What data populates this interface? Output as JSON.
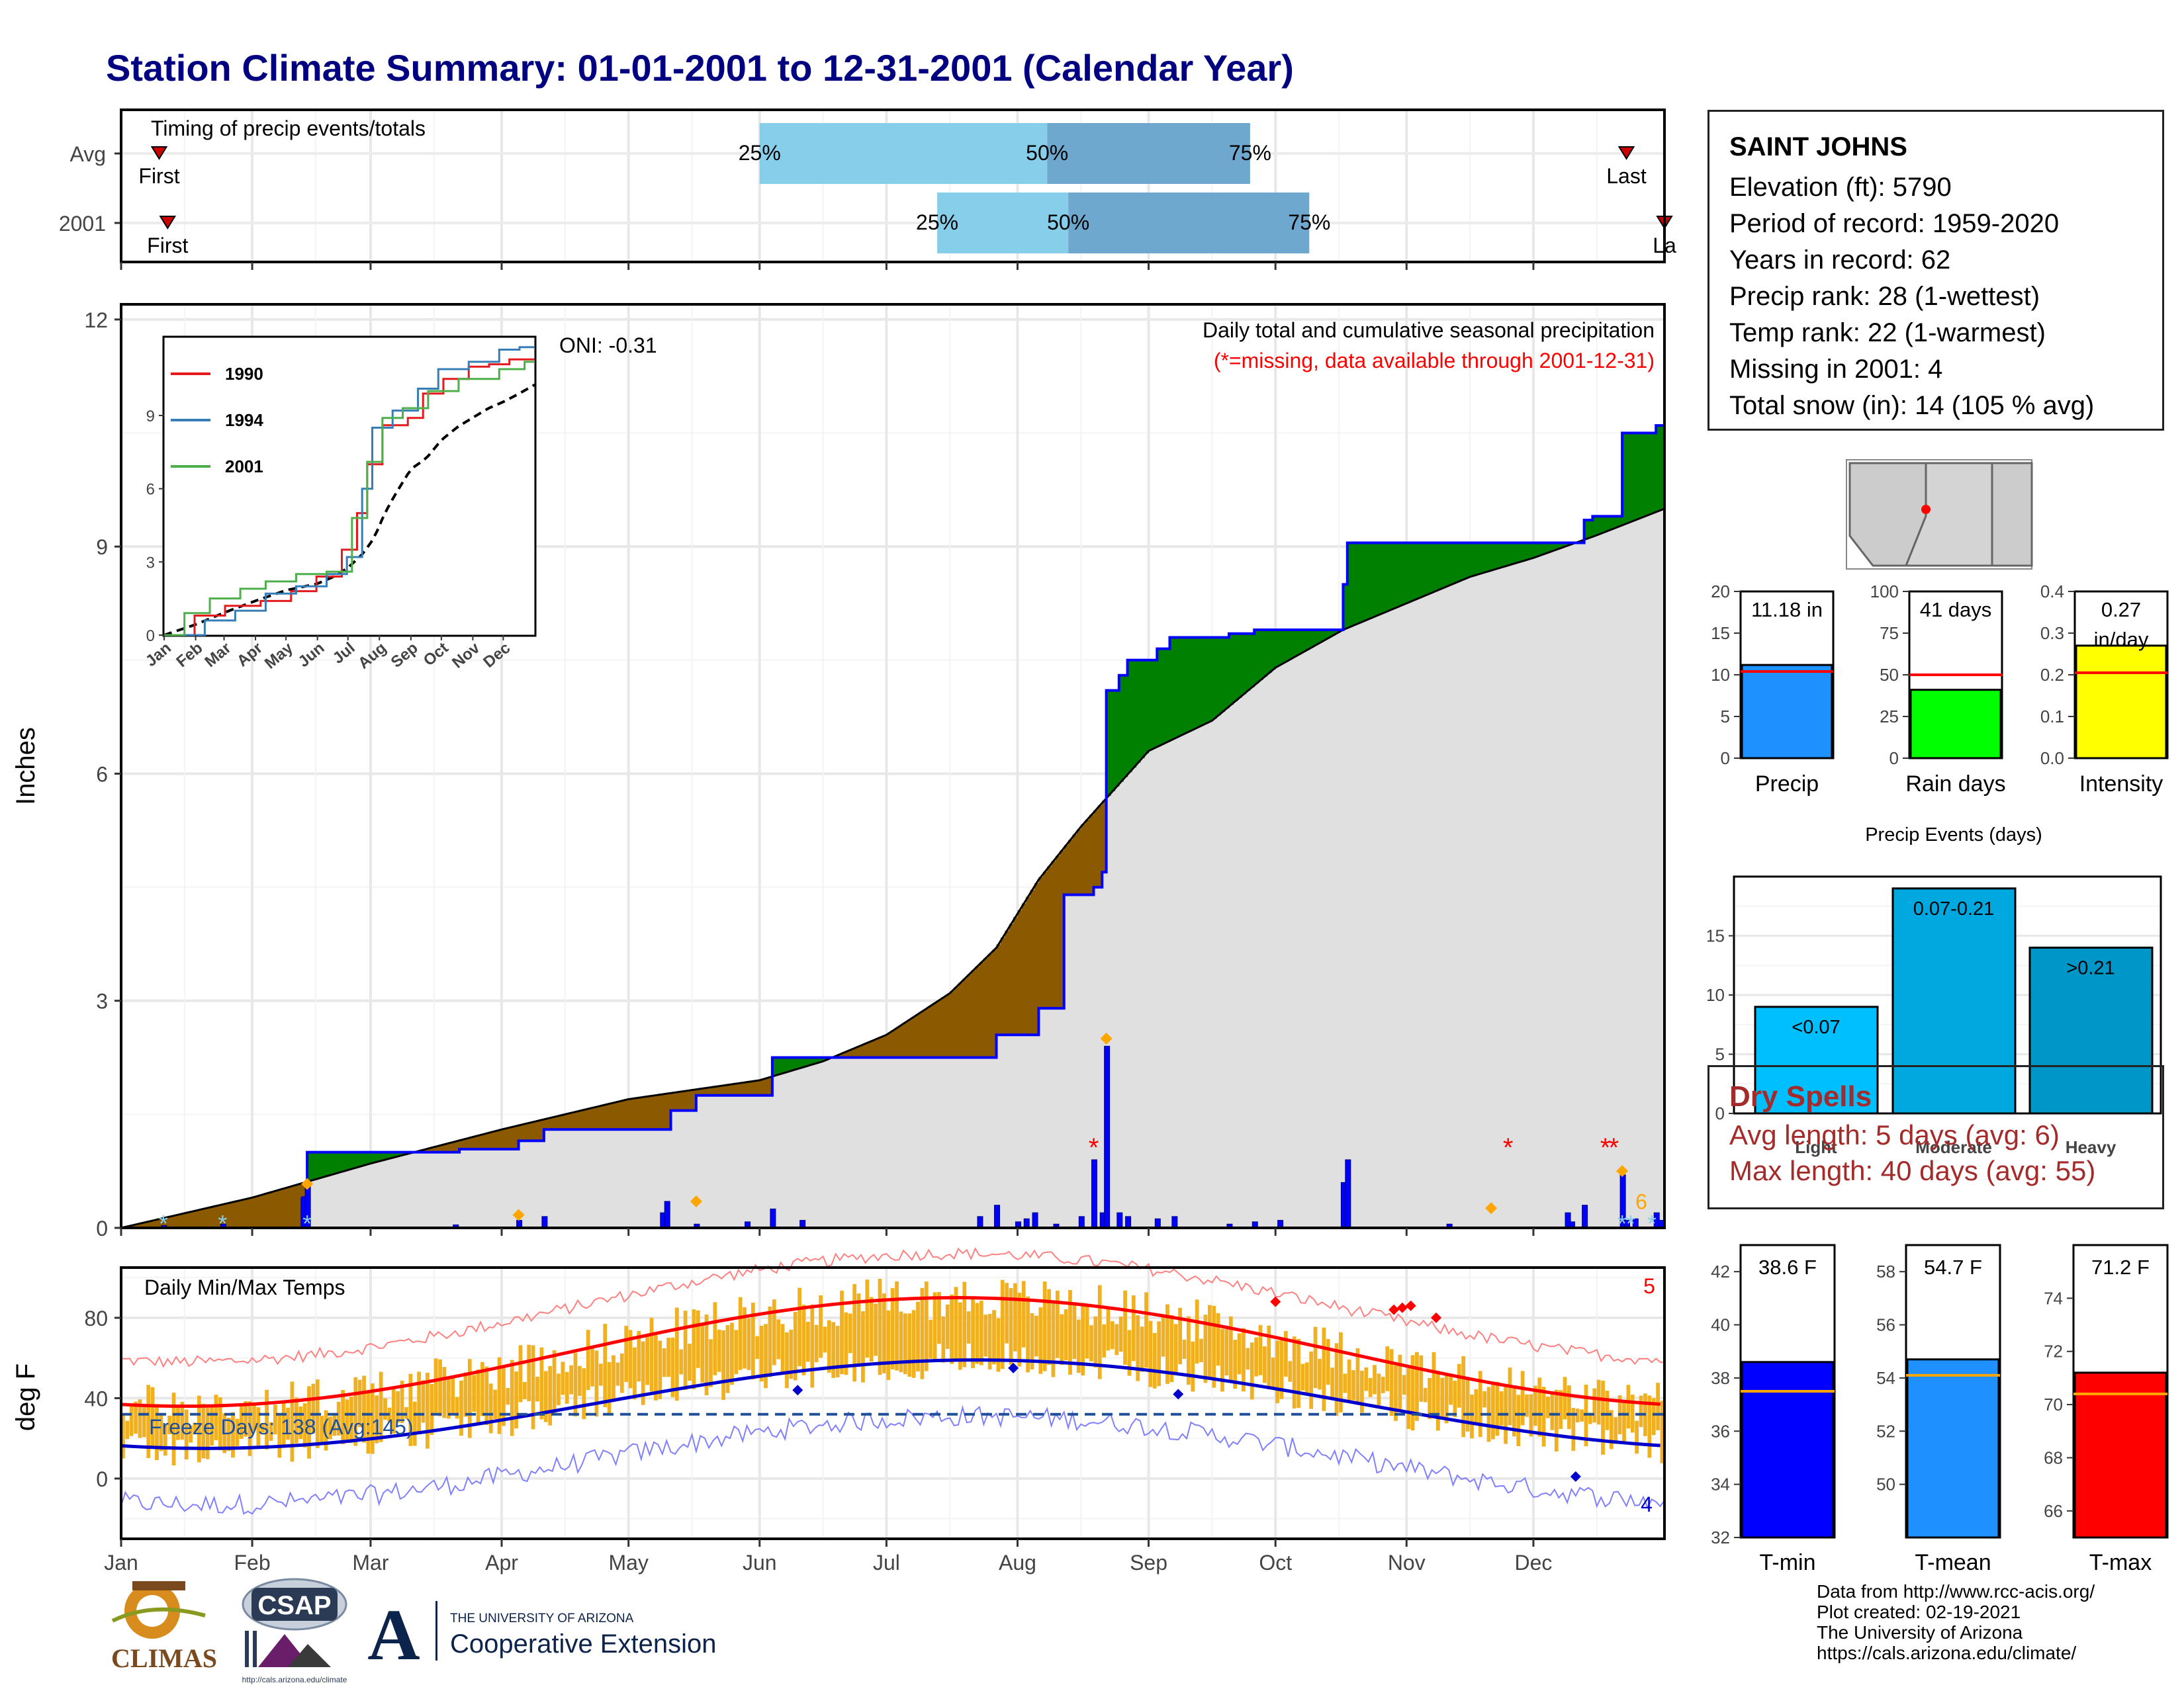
{
  "title": "Station Climate Summary: 01-01-2001 to 12-31-2001 (Calendar Year)",
  "timing": {
    "label": "Timing of precip events/totals",
    "rows": [
      {
        "name": "Avg",
        "first_label": "First",
        "last_label": "Last",
        "q25": "25%",
        "q50": "50%",
        "q75": "75%",
        "first_doy": 9,
        "last_doy": 356,
        "p25_doy": 151,
        "p50_doy": 219,
        "p75_doy": 267
      },
      {
        "name": "2001",
        "first_label": "First",
        "last_label": "La",
        "q25": "25%",
        "q50": "50%",
        "q75": "75%",
        "first_doy": 11,
        "last_doy": 365,
        "p25_doy": 193,
        "p50_doy": 224,
        "p75_doy": 281
      }
    ],
    "colors": {
      "light": "#87ceeb",
      "dark": "#6fa8cf",
      "marker": "#cc0000"
    }
  },
  "months": [
    "Jan",
    "Feb",
    "Mar",
    "Apr",
    "May",
    "Jun",
    "Jul",
    "Aug",
    "Sep",
    "Oct",
    "Nov",
    "Dec"
  ],
  "precip_panel": {
    "ylabel": "Inches",
    "yticks": [
      "0",
      "3",
      "6",
      "9",
      "12"
    ],
    "oni": "ONI: -0.31",
    "subtitle": "Daily total and cumulative seasonal precipitation",
    "missing_note": "(*=missing, data available through 2001-12-31)",
    "snow_count": "6",
    "colors": {
      "above": "#008000",
      "below": "#8b5a00",
      "avg_fill": "#e0e0e0",
      "line": "#0000ff",
      "missing": "#ff0000",
      "orange": "#ffa500"
    }
  },
  "inset": {
    "yticks": [
      "0",
      "3",
      "6",
      "9"
    ],
    "xticks": [
      "Jan",
      "Feb",
      "Mar",
      "Apr",
      "May",
      "Jun",
      "Jul",
      "Aug",
      "Sep",
      "Oct",
      "Nov",
      "Dec"
    ],
    "legend": [
      {
        "name": "1990",
        "color": "#e41a1c"
      },
      {
        "name": "1994",
        "color": "#377eb8"
      },
      {
        "name": "2001",
        "color": "#4daf4a"
      }
    ]
  },
  "temp_panel": {
    "ylabel": "deg F",
    "label": "Daily Min/Max Temps",
    "yticks": [
      "0",
      "40",
      "80"
    ],
    "freeze": "Freeze Days: 138 (Avg:145)",
    "count_top": "5",
    "count_bottom": "4",
    "colors": {
      "bars": "#f0b020",
      "max": "#ff0000",
      "min": "#0000cc",
      "freeze": "#1f4e9a"
    }
  },
  "station": {
    "name": "SAINT JOHNS",
    "lines": [
      "Elevation (ft): 5790",
      "Period of record: 1959-2020",
      "Years in record: 62",
      "Precip rank: 28 (1-wettest)",
      "Temp rank: 22 (1-warmest)",
      "Missing in 2001: 4",
      "Total snow (in): 14 (105 % avg)"
    ]
  },
  "summary_bars": [
    {
      "label": "Precip",
      "value_text": "11.18 in",
      "value": 11.18,
      "avg": 10.4,
      "ymax": 20,
      "yticks": [
        "0",
        "5",
        "10",
        "15",
        "20"
      ],
      "color": "#1e90ff"
    },
    {
      "label": "Rain days",
      "value_text": "41 days",
      "value": 41,
      "avg": 50,
      "ymax": 100,
      "yticks": [
        "0",
        "25",
        "50",
        "75",
        "100"
      ],
      "color": "#00ff00"
    },
    {
      "label": "Intensity",
      "value_text": "0.27",
      "value_text2": "in/day",
      "value": 0.27,
      "avg": 0.205,
      "ymax": 0.4,
      "yticks": [
        "0.0",
        "0.1",
        "0.2",
        "0.3",
        "0.4"
      ],
      "color": "#ffff00"
    }
  ],
  "precip_events": {
    "title": "Precip Events (days)",
    "yticks": [
      "0",
      "5",
      "10",
      "15"
    ],
    "bars": [
      {
        "category": "Light",
        "label": "<0.07",
        "value": 9,
        "color": "#00bfff"
      },
      {
        "category": "Moderate",
        "label": "0.07-0.21",
        "value": 19,
        "color": "#00a8e0"
      },
      {
        "category": "Heavy",
        "label": ">0.21",
        "value": 14,
        "color": "#0096c8"
      }
    ]
  },
  "dry_spells": {
    "title": "Dry Spells",
    "avg": "Avg length: 5 days (avg: 6)",
    "max": "Max length: 40 days (avg: 55)"
  },
  "temp_bars": [
    {
      "label": "T-min",
      "value_text": "38.6 F",
      "value": 38.6,
      "avg": 37.5,
      "ymin": 32,
      "ymax": 43,
      "yticks": [
        "32",
        "34",
        "36",
        "38",
        "40",
        "42"
      ],
      "color": "#0000ff"
    },
    {
      "label": "T-mean",
      "value_text": "54.7 F",
      "value": 54.7,
      "avg": 54.1,
      "ymin": 48,
      "ymax": 59,
      "yticks": [
        "50",
        "52",
        "54",
        "56",
        "58"
      ],
      "color": "#1e90ff"
    },
    {
      "label": "T-max",
      "value_text": "71.2 F",
      "value": 71.2,
      "avg": 70.4,
      "ymin": 65,
      "ymax": 76,
      "yticks": [
        "66",
        "68",
        "70",
        "72",
        "74"
      ],
      "color": "#ff0000"
    }
  ],
  "credits": [
    "Data from http://www.rcc-acis.org/",
    "Plot created: 02-19-2021",
    "The University of Arizona",
    "https://cals.arizona.edu/climate/"
  ],
  "logos": {
    "climas": "CLIMAS",
    "csap": "CSAP",
    "csap_url": "http://cals.arizona.edu/climate",
    "ua_small": "THE UNIVERSITY OF ARIZONA",
    "ua_big": "Cooperative Extension",
    "ua_letter": "A"
  }
}
